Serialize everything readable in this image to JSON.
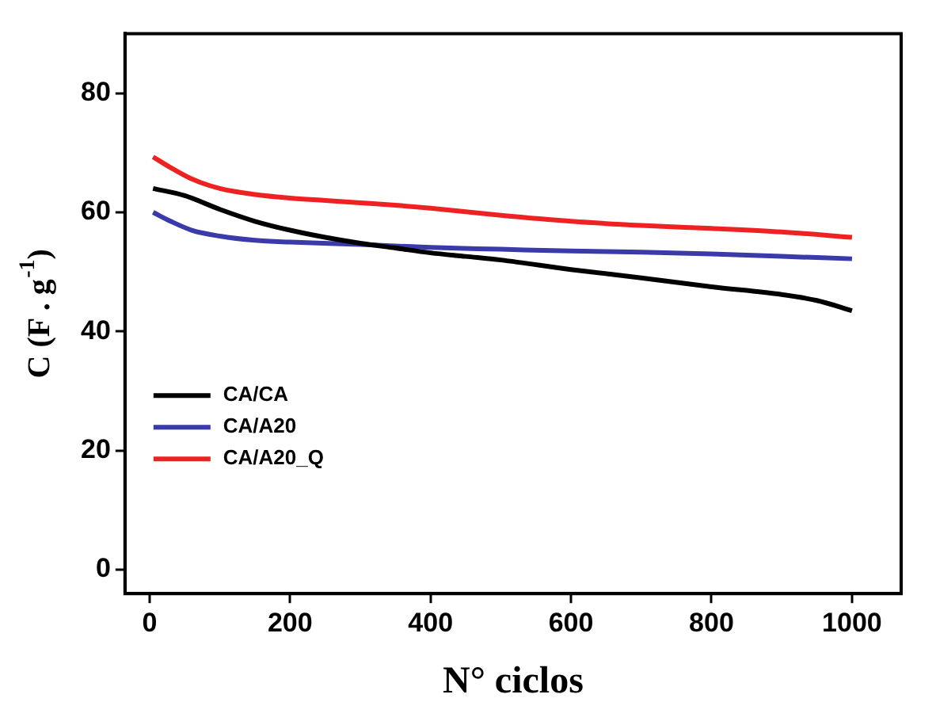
{
  "chart_data": {
    "type": "line",
    "xlabel": "N° ciclos",
    "ylabel": "C (F . g$^{-1}$)",
    "xlim": [
      -35,
      1070
    ],
    "ylim": [
      -4,
      90
    ],
    "xticks": [
      0,
      200,
      400,
      600,
      800,
      1000
    ],
    "yticks": [
      0,
      20,
      40,
      60,
      80
    ],
    "grid": false,
    "legend": "bottom left",
    "marker": "none",
    "line_style": "solid",
    "series": [
      {
        "name": "CA/CA",
        "color": "#000000",
        "x": [
          5,
          50,
          100,
          150,
          200,
          250,
          300,
          350,
          400,
          450,
          500,
          600,
          700,
          800,
          900,
          950,
          1000
        ],
        "values": [
          64,
          62.8,
          60.5,
          58.5,
          57,
          55.8,
          54.8,
          54,
          53.2,
          52.6,
          52,
          50.4,
          49,
          47.5,
          46.2,
          45.2,
          43.5
        ]
      },
      {
        "name": "CA/A20",
        "color": "#3a3aaa",
        "x": [
          5,
          30,
          60,
          100,
          150,
          200,
          300,
          400,
          500,
          600,
          700,
          800,
          900,
          1000
        ],
        "values": [
          60,
          58.5,
          57,
          56,
          55.3,
          55,
          54.6,
          54.1,
          53.8,
          53.5,
          53.3,
          53,
          52.6,
          52.2
        ]
      },
      {
        "name": "CA/A20_Q",
        "color": "#ee2222",
        "x": [
          5,
          30,
          60,
          100,
          150,
          200,
          250,
          300,
          350,
          400,
          450,
          500,
          600,
          700,
          800,
          900,
          1000
        ],
        "values": [
          69.3,
          67.5,
          65.6,
          64,
          63,
          62.4,
          62,
          61.6,
          61.2,
          60.7,
          60.1,
          59.5,
          58.5,
          57.8,
          57.3,
          56.7,
          55.8
        ]
      }
    ]
  }
}
